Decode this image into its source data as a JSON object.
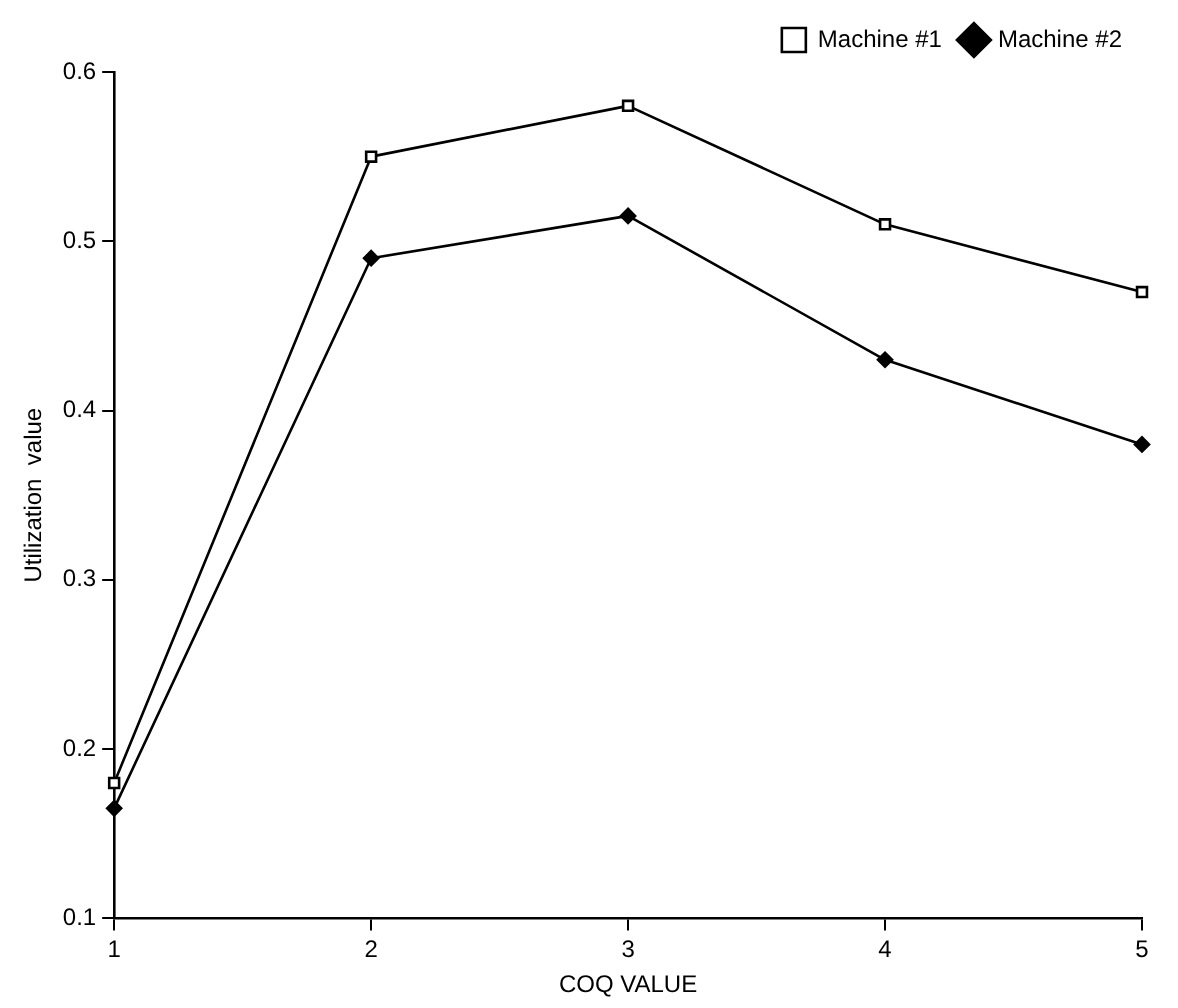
{
  "chart_data": {
    "type": "line",
    "xlabel": "COQ VALUE",
    "ylabel": "Utilization  value",
    "x": [
      1,
      2,
      3,
      4,
      5
    ],
    "xlim": [
      1,
      5
    ],
    "xticks": [
      1,
      2,
      3,
      4,
      5
    ],
    "ylim": [
      0.1,
      0.6
    ],
    "yticks": [
      0.1,
      0.2,
      0.3,
      0.4,
      0.5,
      0.6
    ],
    "grid": false,
    "legend": "top right",
    "line_style": "solid",
    "series": [
      {
        "name": "Machine #1",
        "color": "#000000",
        "marker": "square",
        "values": [
          0.18,
          0.55,
          0.58,
          0.51,
          0.47
        ]
      },
      {
        "name": "Machine #2",
        "color": "#000000",
        "marker": "diamond",
        "values": [
          0.165,
          0.49,
          0.515,
          0.43,
          0.38
        ]
      }
    ]
  }
}
